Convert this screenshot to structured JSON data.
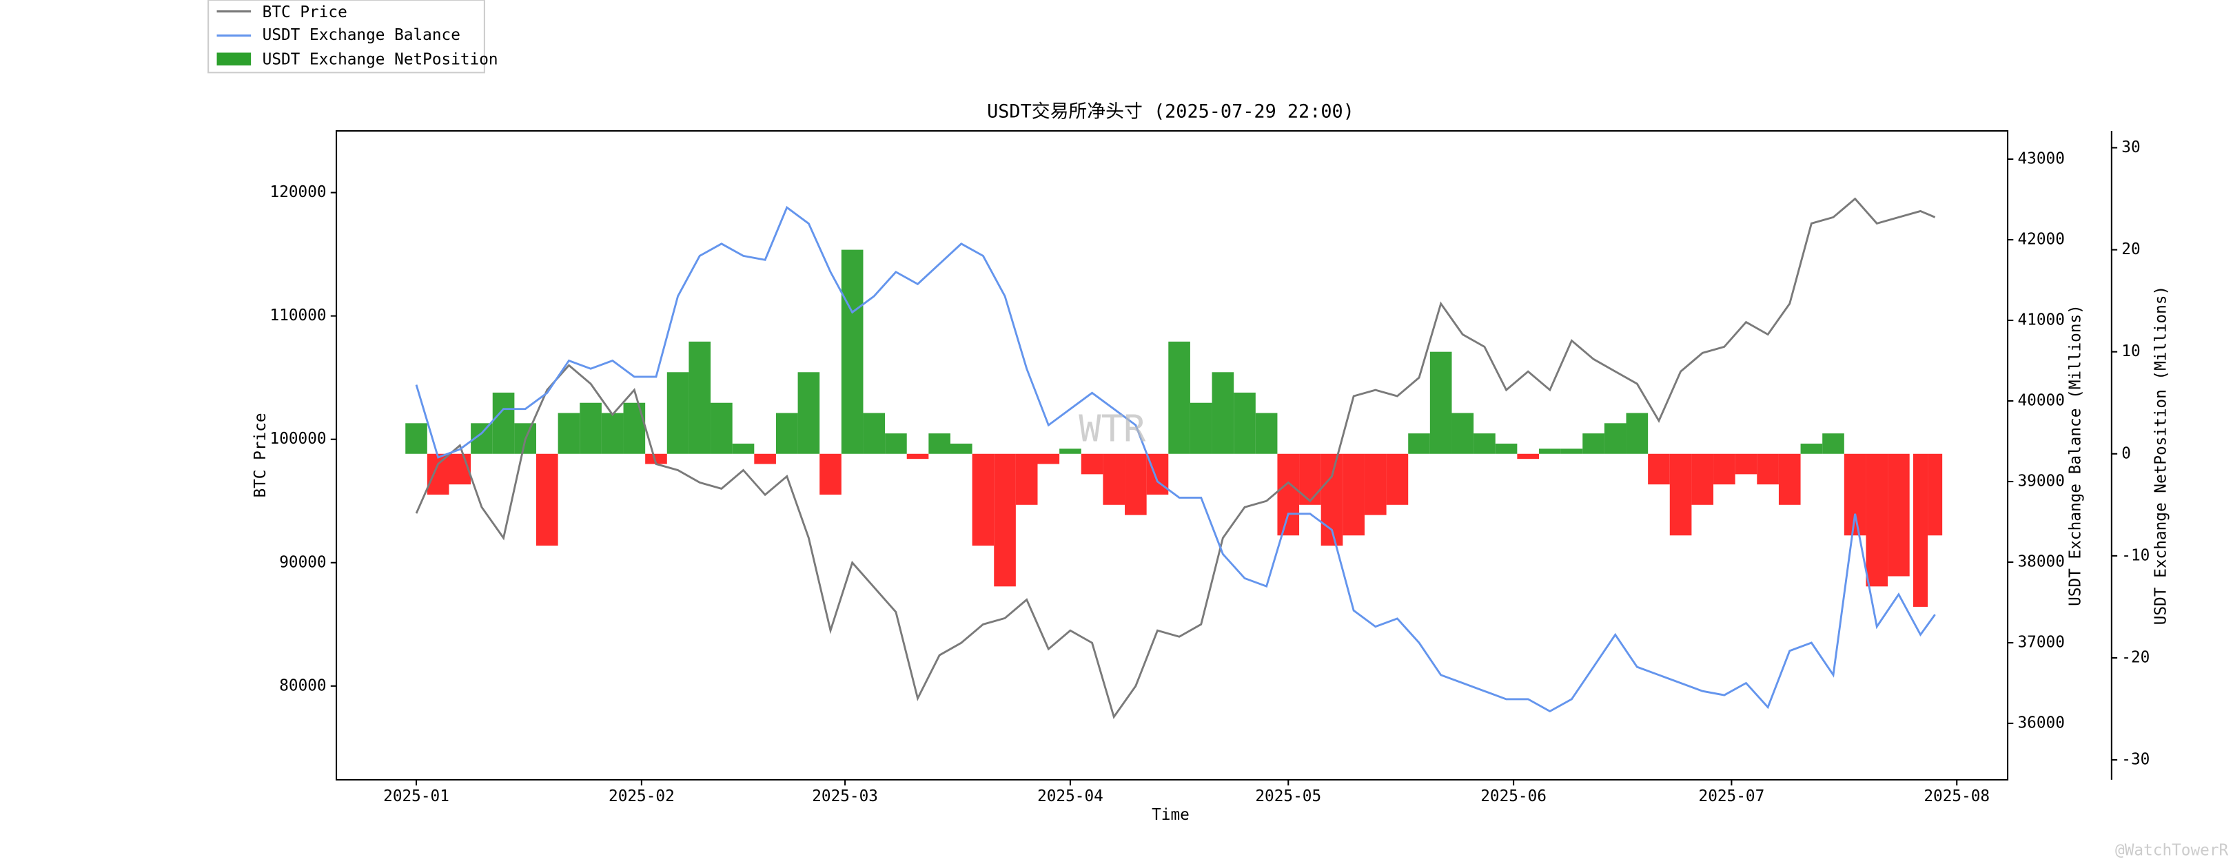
{
  "chart_data": {
    "type": "line",
    "title": "USDT交易所净头寸 (2025-07-29 22:00)",
    "x_label": "Time",
    "y_label": "BTC Price",
    "y2_label": "USDT Exchange Balance (Millions)",
    "y3_label": "USDT Exchange NetPosition (Millions)",
    "watermark": "WTR",
    "credit": "@WatchTowerR",
    "legend": "upper left",
    "x": [
      "2025-01-01",
      "2025-01-04",
      "2025-01-07",
      "2025-01-10",
      "2025-01-13",
      "2025-01-16",
      "2025-01-19",
      "2025-01-22",
      "2025-01-25",
      "2025-01-28",
      "2025-01-31",
      "2025-02-03",
      "2025-02-06",
      "2025-02-09",
      "2025-02-12",
      "2025-02-15",
      "2025-02-18",
      "2025-02-21",
      "2025-02-24",
      "2025-02-27",
      "2025-03-02",
      "2025-03-05",
      "2025-03-08",
      "2025-03-11",
      "2025-03-14",
      "2025-03-17",
      "2025-03-20",
      "2025-03-23",
      "2025-03-26",
      "2025-03-29",
      "2025-04-01",
      "2025-04-04",
      "2025-04-07",
      "2025-04-10",
      "2025-04-13",
      "2025-04-16",
      "2025-04-19",
      "2025-04-22",
      "2025-04-25",
      "2025-04-28",
      "2025-05-01",
      "2025-05-04",
      "2025-05-07",
      "2025-05-10",
      "2025-05-13",
      "2025-05-16",
      "2025-05-19",
      "2025-05-22",
      "2025-05-25",
      "2025-05-28",
      "2025-05-31",
      "2025-06-03",
      "2025-06-06",
      "2025-06-09",
      "2025-06-12",
      "2025-06-15",
      "2025-06-18",
      "2025-06-21",
      "2025-06-24",
      "2025-06-27",
      "2025-06-30",
      "2025-07-03",
      "2025-07-06",
      "2025-07-09",
      "2025-07-12",
      "2025-07-15",
      "2025-07-18",
      "2025-07-21",
      "2025-07-24",
      "2025-07-27",
      "2025-07-29"
    ],
    "xlim": [
      "2024-12-21",
      "2025-08-08"
    ],
    "xticks": [
      "2025-01",
      "2025-02",
      "2025-03",
      "2025-04",
      "2025-05",
      "2025-06",
      "2025-07",
      "2025-08"
    ],
    "ylim": [
      72400,
      125000
    ],
    "yticks": [
      80000,
      90000,
      100000,
      110000,
      120000
    ],
    "y2lim": [
      35300,
      43350
    ],
    "y2ticks": [
      36000,
      37000,
      38000,
      39000,
      40000,
      41000,
      42000,
      43000
    ],
    "y3lim": [
      -31.95,
      31.65
    ],
    "y3ticks": [
      -30,
      -20,
      -10,
      0,
      10,
      20,
      30
    ],
    "series": [
      {
        "name": "BTC Price",
        "type": "line",
        "axis": "y",
        "color": "#7a7a7a",
        "values": [
          94000,
          98000,
          99500,
          94500,
          92000,
          100000,
          104000,
          106000,
          104500,
          102000,
          104000,
          98000,
          97500,
          96500,
          96000,
          97500,
          95500,
          97000,
          92000,
          84500,
          90000,
          88000,
          86000,
          79000,
          82500,
          83500,
          85000,
          85500,
          87000,
          83000,
          84500,
          83500,
          77500,
          80000,
          84500,
          84000,
          85000,
          92000,
          94500,
          95000,
          96500,
          95000,
          97000,
          103500,
          104000,
          103500,
          105000,
          111000,
          108500,
          107500,
          104000,
          105500,
          104000,
          108000,
          106500,
          105500,
          104500,
          101500,
          105500,
          107000,
          107500,
          109500,
          108500,
          111000,
          117500,
          118000,
          119500,
          117500,
          118000,
          118500,
          118000
        ]
      },
      {
        "name": "USDT Exchange Balance",
        "type": "line",
        "axis": "y2",
        "color": "#6495ed",
        "values": [
          40200,
          39300,
          39400,
          39600,
          39900,
          39900,
          40100,
          40500,
          40400,
          40500,
          40300,
          40300,
          41300,
          41800,
          41950,
          41800,
          41750,
          42400,
          42200,
          41600,
          41100,
          41300,
          41600,
          41450,
          41700,
          41950,
          41800,
          41300,
          40400,
          39700,
          39900,
          40100,
          39900,
          39700,
          39000,
          38800,
          38800,
          38100,
          37800,
          37700,
          38600,
          38600,
          38400,
          37400,
          37200,
          37300,
          37000,
          36600,
          36500,
          36400,
          36300,
          36300,
          36150,
          36300,
          36700,
          37100,
          36700,
          36600,
          36500,
          36400,
          36350,
          36500,
          36200,
          36900,
          37000,
          36600,
          38600,
          37200,
          37600,
          37100,
          37350
        ]
      },
      {
        "name": "USDT Exchange NetPosition",
        "type": "bar",
        "axis": "y3",
        "color": "#2ca02c",
        "negative_color": "#ff2020",
        "values": [
          3,
          -4,
          -3,
          3,
          6,
          3,
          -9,
          4,
          5,
          4,
          5,
          -1,
          8,
          11,
          5,
          1,
          -1,
          4,
          8,
          -4,
          20,
          4,
          2,
          -0.5,
          2,
          1,
          -9,
          -13,
          -5,
          -1,
          0.5,
          -2,
          -5,
          -6,
          -4,
          11,
          5,
          8,
          6,
          4,
          -8,
          -5,
          -9,
          -8,
          -6,
          -5,
          2,
          10,
          4,
          2,
          1,
          -0.5,
          0.5,
          0.5,
          2,
          3,
          4,
          -3,
          -8,
          -5,
          -3,
          -2,
          -3,
          -5,
          1,
          2,
          -8,
          -13,
          -12,
          -15,
          -8
        ]
      }
    ]
  }
}
